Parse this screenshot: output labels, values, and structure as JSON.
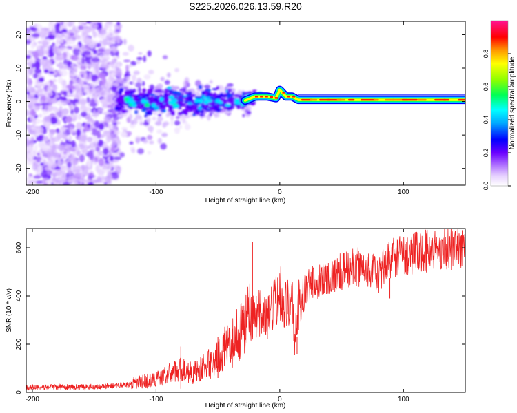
{
  "title": "S225.2026.026.13.59.R20",
  "chart_data": [
    {
      "type": "heatmap",
      "xlabel": "Height of straight line (km)",
      "ylabel": "Frequency (Hz)",
      "xlim": [
        -205,
        150
      ],
      "ylim": [
        -25,
        24
      ],
      "xticks": [
        -200,
        -100,
        0,
        100
      ],
      "yticks": [
        -20,
        -10,
        0,
        10,
        20
      ],
      "ridge": [
        {
          "x": -30,
          "y": 0
        },
        {
          "x": -20,
          "y": 1.5
        },
        {
          "x": -10,
          "y": 1.5
        },
        {
          "x": -3,
          "y": 1
        },
        {
          "x": 0,
          "y": 3.5
        },
        {
          "x": 5,
          "y": 1.5
        },
        {
          "x": 10,
          "y": 1.5
        },
        {
          "x": 15,
          "y": 0.5
        },
        {
          "x": 50,
          "y": 0.5
        },
        {
          "x": 100,
          "y": 0.5
        },
        {
          "x": 150,
          "y": 0.5
        }
      ],
      "colorbar": {
        "label": "Normalized spectral amplitude",
        "range": [
          0,
          1
        ],
        "ticks": [
          "0.0",
          "0.2",
          "0.4",
          "0.6",
          "0.8"
        ]
      }
    },
    {
      "type": "line",
      "xlabel": "Height of straight line (km)",
      "ylabel": "SNR (10 * v/v)",
      "xlim": [
        -205,
        150
      ],
      "ylim": [
        0,
        680
      ],
      "xticks": [
        -200,
        -100,
        0,
        100
      ],
      "yticks": [
        0,
        200,
        400,
        600
      ],
      "color": "#ee2222",
      "series": [
        {
          "name": "SNR",
          "points": [
            [
              -205,
              20
            ],
            [
              -180,
              22
            ],
            [
              -160,
              22
            ],
            [
              -140,
              25
            ],
            [
              -120,
              35
            ],
            [
              -100,
              55
            ],
            [
              -90,
              75
            ],
            [
              -80,
              95
            ],
            [
              -70,
              80
            ],
            [
              -60,
              110
            ],
            [
              -50,
              140
            ],
            [
              -45,
              180
            ],
            [
              -40,
              190
            ],
            [
              -35,
              230
            ],
            [
              -30,
              270
            ],
            [
              -25,
              320
            ],
            [
              -20,
              300
            ],
            [
              -15,
              340
            ],
            [
              -10,
              300
            ],
            [
              -5,
              360
            ],
            [
              0,
              430
            ],
            [
              5,
              360
            ],
            [
              10,
              390
            ],
            [
              12,
              210
            ],
            [
              15,
              360
            ],
            [
              20,
              420
            ],
            [
              25,
              450
            ],
            [
              30,
              460
            ],
            [
              40,
              480
            ],
            [
              50,
              500
            ],
            [
              60,
              520
            ],
            [
              70,
              520
            ],
            [
              80,
              480
            ],
            [
              85,
              530
            ],
            [
              90,
              560
            ],
            [
              100,
              570
            ],
            [
              110,
              580
            ],
            [
              120,
              590
            ],
            [
              130,
              595
            ],
            [
              140,
              600
            ],
            [
              150,
              595
            ]
          ],
          "spikes": [
            [
              -80,
              190
            ],
            [
              -50,
              230
            ],
            [
              -28,
              410
            ],
            [
              -24,
              390
            ],
            [
              -22,
              625
            ],
            [
              -19,
              400
            ],
            [
              -10,
              350
            ],
            [
              -8,
              250
            ],
            [
              14,
              160
            ],
            [
              15,
              470
            ],
            [
              70,
              440
            ],
            [
              89,
              390
            ]
          ]
        }
      ]
    }
  ]
}
